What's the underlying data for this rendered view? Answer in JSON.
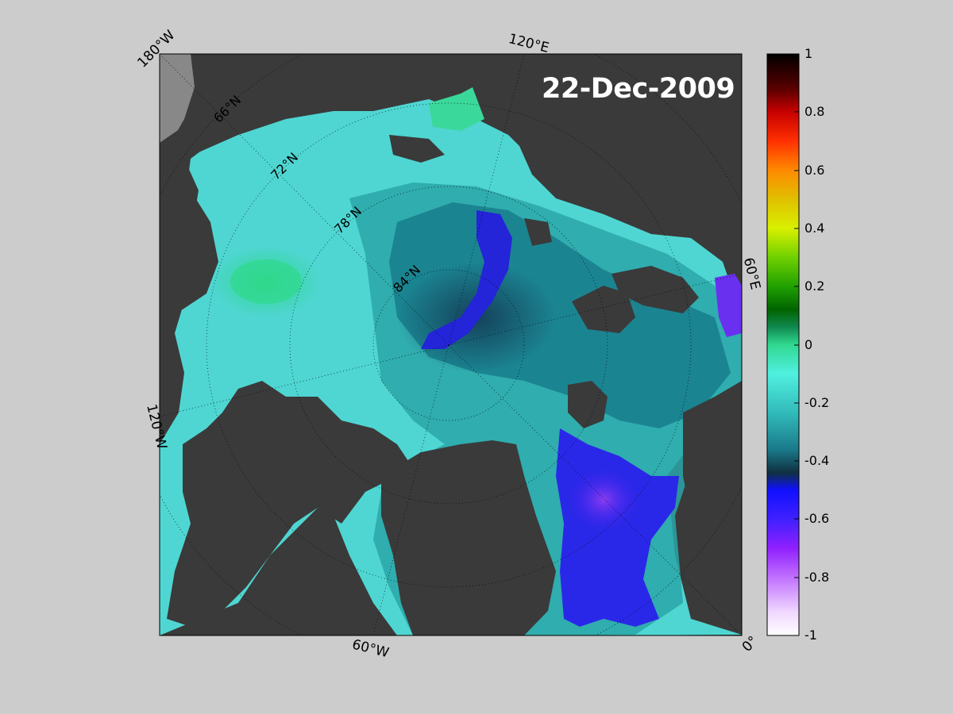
{
  "map": {
    "date": "22-Dec-2009",
    "lon_labels": [
      "180°W",
      "120°E",
      "60°E",
      "0°",
      "60°W",
      "120°W"
    ],
    "lat_labels": [
      "66°N",
      "72°N",
      "78°N",
      "84°N"
    ]
  },
  "colorbar": {
    "ticks": [
      "1",
      "0.8",
      "0.6",
      "0.4",
      "0.2",
      "0",
      "-0.2",
      "-0.4",
      "-0.6",
      "-0.8",
      "-1"
    ],
    "range": [
      -1,
      1
    ]
  },
  "colors": {
    "background": "#cccccc",
    "land": "#3a3a3a",
    "pale_land": "#888888",
    "low": "#1f1fe0",
    "mid": "#1aa3a3",
    "high_cyan": "#55e0d8"
  }
}
